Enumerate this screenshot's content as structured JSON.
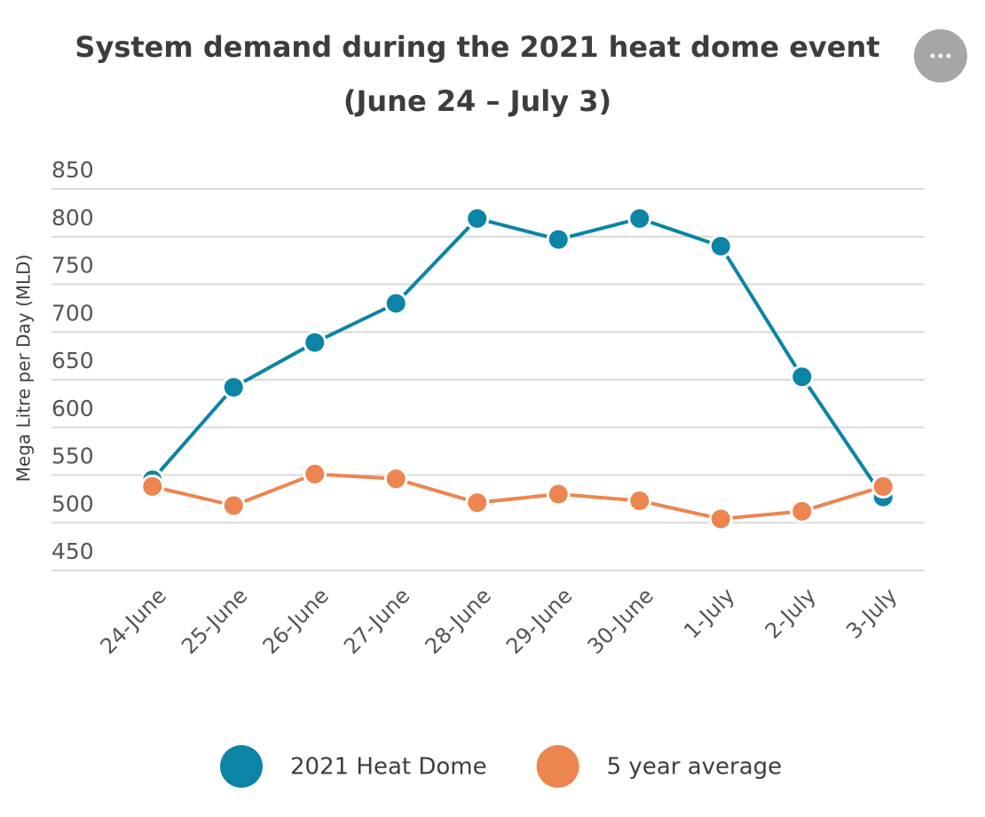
{
  "chart_data": {
    "type": "line",
    "title": "System demand during the 2021 heat dome event",
    "subtitle": "(June 24 – July 3)",
    "y_label": "Mega Litre per Day (MLD)",
    "categories": [
      "24-June",
      "25-June",
      "26-June",
      "27-June",
      "28-June",
      "29-June",
      "30-June",
      "1-July",
      "2-July",
      "3-July"
    ],
    "series": [
      {
        "name": "2021 Heat Dome",
        "color": "#0b84a5",
        "values": [
          545,
          642,
          689,
          730,
          819,
          797,
          819,
          790,
          653,
          527
        ]
      },
      {
        "name": "5 year average",
        "color": "#ec8550",
        "values": [
          538,
          518,
          551,
          546,
          521,
          530,
          523,
          504,
          512,
          538
        ]
      }
    ],
    "ylim": [
      450,
      850
    ],
    "yticks": [
      450,
      500,
      550,
      600,
      650,
      700,
      750,
      800,
      850
    ],
    "grid": true,
    "legend": "bottom"
  }
}
